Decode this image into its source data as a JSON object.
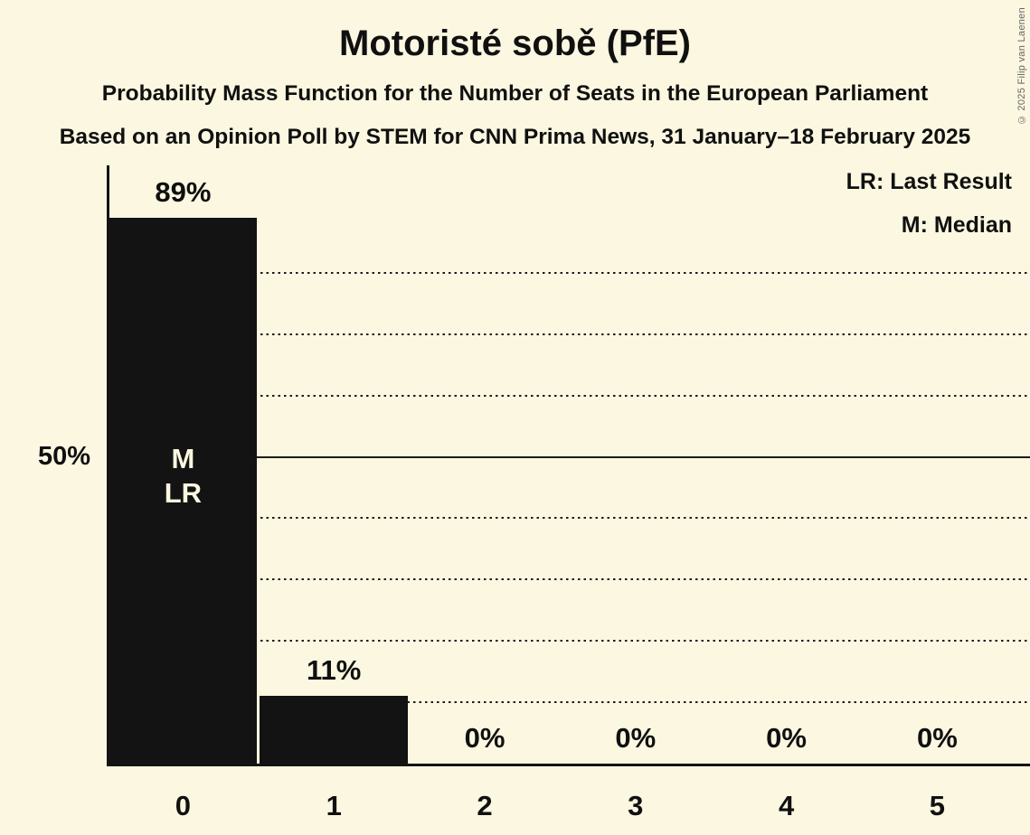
{
  "meta": {
    "copyright": "© 2025 Filip van Laenen"
  },
  "header": {
    "title": "Motoristé sobě (PfE)",
    "subtitle1": "Probability Mass Function for the Number of Seats in the European Parliament",
    "subtitle2": "Based on an Opinion Poll by STEM for CNN Prima News, 31 January–18 February 2025"
  },
  "legend": {
    "lr": "LR: Last Result",
    "m": "M: Median"
  },
  "chart_data": {
    "type": "bar",
    "title": "Motoristé sobě (PfE)",
    "categories": [
      "0",
      "1",
      "2",
      "3",
      "4",
      "5"
    ],
    "values": [
      89,
      11,
      0,
      0,
      0,
      0
    ],
    "value_labels": [
      "89%",
      "11%",
      "0%",
      "0%",
      "0%",
      "0%"
    ],
    "ylim": [
      0,
      97.5
    ],
    "grid": "on",
    "gridlines_pct": [
      10,
      20,
      30,
      40,
      50,
      60,
      70,
      80
    ],
    "solid_gridline_pct": 50,
    "y_axis_label": {
      "pct": 50,
      "text": "50%"
    },
    "annotations": [
      {
        "category_index": 0,
        "lines": [
          "M",
          "LR"
        ]
      }
    ],
    "legend_position": "top-right",
    "colors": {
      "background": "#FBF7E0",
      "bar": "#131313",
      "text": "#101010",
      "grid": "#1c1c1c",
      "annotation_text": "#FBF7E0",
      "copyright": "#666666"
    }
  }
}
